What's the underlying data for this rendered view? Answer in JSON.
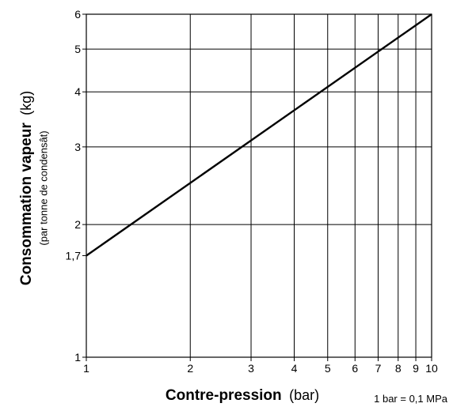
{
  "chart_data": {
    "type": "line",
    "x_scale": "log",
    "y_scale": "log",
    "xlim": [
      1,
      10
    ],
    "ylim": [
      1,
      6
    ],
    "grid": true,
    "series": [
      {
        "x": [
          1,
          10
        ],
        "y": [
          1.7,
          6
        ]
      }
    ],
    "x_ticks": [
      1,
      2,
      3,
      4,
      5,
      6,
      7,
      8,
      9,
      10
    ],
    "x_tick_labels": [
      "1",
      "2",
      "3",
      "4",
      "5",
      "6",
      "7",
      "8",
      "9",
      "10"
    ],
    "y_ticks": [
      1,
      1.7,
      2,
      3,
      4,
      5,
      6
    ],
    "y_tick_labels": [
      "1",
      "1,7",
      "2",
      "3",
      "4",
      "5",
      "6"
    ],
    "xlabel_main": "Contre-pression",
    "xlabel_unit": "(bar)",
    "ylabel_main": "Consommation vapeur",
    "ylabel_unit": "(kg)",
    "ylabel_sub": "(par tonne de condensât)",
    "note": "1 bar = 0,1 MPa"
  }
}
